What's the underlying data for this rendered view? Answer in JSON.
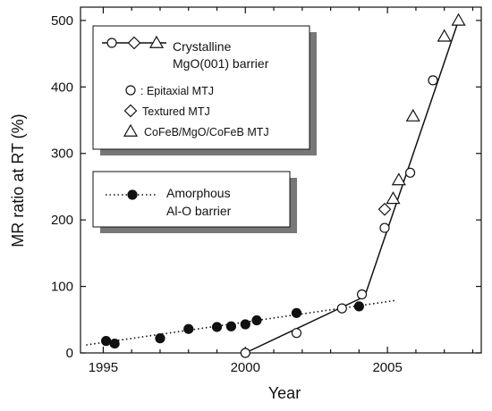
{
  "chart_data": {
    "type": "scatter",
    "xlabel": "Year",
    "ylabel": "MR ratio at RT (%)",
    "xlim": [
      1994.2,
      2008.3
    ],
    "ylim": [
      0,
      520
    ],
    "xticks": [
      1995,
      2000,
      2005
    ],
    "yticks": [
      0,
      100,
      200,
      300,
      400,
      500
    ],
    "grid": false,
    "groups": [
      {
        "name_lines": [
          "Crystalline",
          "MgO(001) barrier"
        ],
        "line_style": "solid",
        "trend_line": [
          [
            2000.0,
            0
          ],
          [
            2004.2,
            85
          ],
          [
            2007.5,
            500
          ]
        ],
        "series": [
          {
            "name": ": Epitaxial MTJ",
            "marker": "circle-open",
            "points": [
              [
                2000.0,
                0
              ],
              [
                2001.8,
                30
              ],
              [
                2003.4,
                67
              ],
              [
                2004.1,
                88
              ],
              [
                2004.9,
                188
              ],
              [
                2005.8,
                271
              ],
              [
                2006.6,
                410
              ]
            ]
          },
          {
            "name": "Textured MTJ",
            "marker": "diamond-open",
            "points": [
              [
                2004.9,
                216
              ]
            ]
          },
          {
            "name": "CoFeB/MgO/CoFeB MTJ",
            "marker": "triangle-open",
            "points": [
              [
                2005.2,
                232
              ],
              [
                2005.4,
                260
              ],
              [
                2005.9,
                356
              ],
              [
                2007.0,
                476
              ],
              [
                2007.5,
                500
              ]
            ]
          }
        ]
      },
      {
        "name_lines": [
          "Amorphous",
          "Al-O barrier"
        ],
        "line_style": "dotted",
        "trend_line": [
          [
            1994.4,
            12
          ],
          [
            2005.3,
            79
          ]
        ],
        "series": [
          {
            "name": "",
            "marker": "circle-filled",
            "points": [
              [
                1995.1,
                18
              ],
              [
                1995.4,
                14
              ],
              [
                1997.0,
                22
              ],
              [
                1998.0,
                36
              ],
              [
                1999.0,
                39
              ],
              [
                1999.5,
                40
              ],
              [
                2000.0,
                43
              ],
              [
                2000.4,
                49
              ],
              [
                2001.8,
                60
              ],
              [
                2004.0,
                70
              ]
            ]
          }
        ]
      }
    ]
  }
}
